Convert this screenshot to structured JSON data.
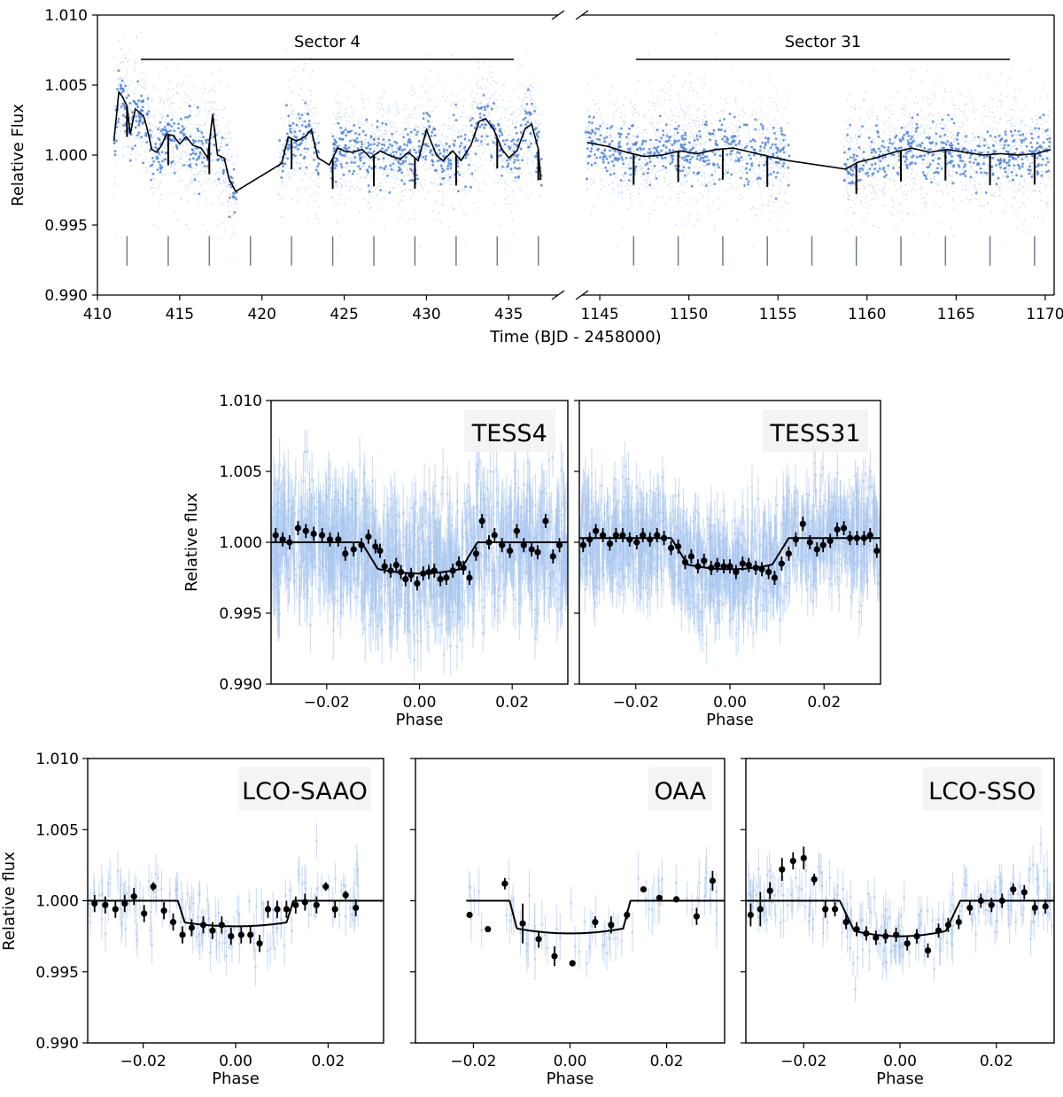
{
  "chart_data": [
    {
      "type": "scatter",
      "panel": "timeseries",
      "ylabel": "Relative Flux",
      "xlabel": "Time (BJD - 2458000)",
      "ylim": [
        0.99,
        1.01
      ],
      "yticks": [
        "0.990",
        "0.995",
        "1.000",
        "1.005",
        "1.010"
      ],
      "segments": [
        {
          "label": "Sector 4",
          "xlim": [
            410,
            438
          ],
          "xticks": [
            "410",
            "415",
            "420",
            "425",
            "430",
            "435"
          ],
          "data_ranges": [
            [
              411.0,
              418.5
            ],
            [
              421.0,
              423.5
            ],
            [
              424.2,
              437.0
            ]
          ],
          "transit_times": [
            411.8,
            414.3,
            416.8,
            419.3,
            421.8,
            424.3,
            426.8,
            429.3,
            431.8,
            434.3,
            436.8
          ],
          "model": {
            "x": [
              411.0,
              411.3,
              411.5,
              411.8,
              412.0,
              412.3,
              412.6,
              412.8,
              413.0,
              413.3,
              413.6,
              413.9,
              414.2,
              414.6,
              415.0,
              415.4,
              415.8,
              416.3,
              416.7,
              417.0,
              417.3,
              417.7,
              418.0,
              418.4,
              421.2,
              421.6,
              422.1,
              422.6,
              423.0,
              423.4,
              424.1,
              424.6,
              425.0,
              425.5,
              426.1,
              426.6,
              427.2,
              427.7,
              428.4,
              428.9,
              429.5,
              430.0,
              430.6,
              431.0,
              431.6,
              432.1,
              432.7,
              433.2,
              433.6,
              434.1,
              434.6,
              435.0,
              435.5,
              436.0,
              436.4,
              436.8,
              437.0
            ],
            "y": [
              1.001,
              1.0045,
              1.0042,
              1.0035,
              1.0015,
              1.0033,
              1.003,
              1.0028,
              1.002,
              1.0004,
              1.0002,
              1.0007,
              1.0015,
              1.0014,
              1.0008,
              1.0013,
              1.0007,
              1.0005,
              0.9998,
              1.0029,
              1.0,
              0.9998,
              0.9983,
              0.9974,
              0.9994,
              1.0013,
              1.001,
              1.0013,
              1.0018,
              0.9998,
              0.9993,
              1.0005,
              1.0003,
              1.0002,
              1.0004,
              0.9998,
              1.0003,
              1.0,
              0.9997,
              1.0002,
              0.9996,
              1.0018,
              1.0,
              0.9996,
              1.0003,
              0.9996,
              1.0007,
              1.0024,
              1.0026,
              1.0018,
              1.0004,
              0.9998,
              1.0003,
              1.0019,
              1.0022,
              1.0004,
              0.9975
            ]
          }
        },
        {
          "label": "Sector 31",
          "xlim": [
            1144,
            1170.5
          ],
          "xticks": [
            "1145",
            "1150",
            "1155",
            "1160",
            "1165",
            "1170"
          ],
          "data_ranges": [
            [
              1144.2,
              1155.7
            ],
            [
              1158.7,
              1170.3
            ]
          ],
          "transit_times": [
            1146.9,
            1149.4,
            1151.9,
            1154.4,
            1156.9,
            1159.4,
            1161.9,
            1164.4,
            1166.9,
            1169.4
          ],
          "model": {
            "x": [
              1144.3,
              1145.5,
              1146.5,
              1147.5,
              1148.5,
              1149.5,
              1150.5,
              1151.5,
              1152.5,
              1153.5,
              1154.5,
              1155.6,
              1158.8,
              1159.5,
              1160.5,
              1161.5,
              1162.5,
              1163.5,
              1164.5,
              1165.5,
              1166.5,
              1167.5,
              1168.5,
              1169.5,
              1170.3
            ],
            "y": [
              1.0009,
              1.0006,
              1.0002,
              0.9999,
              1.0,
              1.0003,
              1.0001,
              1.0004,
              1.0005,
              1.0002,
              0.9999,
              0.9996,
              0.999,
              0.9995,
              0.9998,
              1.0002,
              1.0005,
              1.0002,
              1.0004,
              1.0002,
              1.0,
              1.0001,
              1.0,
              1.0001,
              1.0004
            ]
          }
        }
      ]
    },
    {
      "type": "scatter",
      "panel": "TESS4",
      "label": "TESS4",
      "xlabel": "Phase",
      "ylabel": "Relative flux",
      "xlim": [
        -0.032,
        0.032
      ],
      "ylim": [
        0.99,
        1.01
      ],
      "xticks": [
        "−0.02",
        "0.00",
        "0.02"
      ],
      "yticks": [
        "0.990",
        "0.995",
        "1.000",
        "1.005",
        "1.010"
      ],
      "model": {
        "baseline": 1.0,
        "depth": 0.0022,
        "t1": 0.0125,
        "t2": 0.009
      },
      "binned": {
        "x": [
          -0.031,
          -0.0295,
          -0.028,
          -0.0262,
          -0.0245,
          -0.0228,
          -0.021,
          -0.0193,
          -0.0175,
          -0.016,
          -0.0142,
          -0.0125,
          -0.011,
          -0.0095,
          -0.0085,
          -0.0075,
          -0.0062,
          -0.005,
          -0.004,
          -0.003,
          -0.0018,
          -0.0005,
          0.0008,
          0.002,
          0.0032,
          0.0045,
          0.0058,
          0.0072,
          0.0085,
          0.0095,
          0.0108,
          0.0122,
          0.0135,
          0.015,
          0.0162,
          0.0178,
          0.0195,
          0.021,
          0.0225,
          0.0242,
          0.0255,
          0.0272,
          0.0288,
          0.0302
        ],
        "y": [
          1.0005,
          1.0002,
          1.0,
          1.001,
          1.0008,
          1.0006,
          1.0005,
          1.0002,
          1.0002,
          0.9992,
          0.9995,
          0.9998,
          1.0004,
          0.9997,
          0.9994,
          0.9983,
          0.998,
          0.9984,
          0.9979,
          0.9974,
          0.9977,
          0.9971,
          0.9978,
          0.9979,
          0.998,
          0.9974,
          0.9975,
          0.998,
          0.9985,
          0.9982,
          0.9975,
          0.9992,
          1.0015,
          1.0,
          1.0005,
          0.9998,
          0.9994,
          1.0008,
          0.9998,
          0.9995,
          0.9993,
          1.0015,
          0.999,
          0.9998
        ],
        "err": [
          0.0005,
          0.0005,
          0.0005,
          0.0005,
          0.0005,
          0.0005,
          0.0005,
          0.0005,
          0.0005,
          0.0005,
          0.0005,
          0.0005,
          0.0005,
          0.0005,
          0.0005,
          0.0005,
          0.0005,
          0.0005,
          0.0005,
          0.0005,
          0.0005,
          0.0005,
          0.0005,
          0.0005,
          0.0005,
          0.0005,
          0.0005,
          0.0005,
          0.0005,
          0.0005,
          0.0005,
          0.0005,
          0.0005,
          0.0005,
          0.0005,
          0.0005,
          0.0005,
          0.0005,
          0.0005,
          0.0005,
          0.0005,
          0.0005,
          0.0005,
          0.0005
        ]
      }
    },
    {
      "type": "scatter",
      "panel": "TESS31",
      "label": "TESS31",
      "xlabel": "Phase",
      "ylabel": "",
      "xlim": [
        -0.032,
        0.032
      ],
      "ylim": [
        0.99,
        1.01
      ],
      "xticks": [
        "−0.02",
        "0.00",
        "0.02"
      ],
      "yticks": [],
      "model": {
        "baseline": 1.0003,
        "depth": 0.0022,
        "t1": 0.0125,
        "t2": 0.009
      },
      "binned": {
        "x": [
          -0.0312,
          -0.0298,
          -0.0285,
          -0.027,
          -0.0255,
          -0.0242,
          -0.0228,
          -0.0213,
          -0.0198,
          -0.0185,
          -0.017,
          -0.0155,
          -0.014,
          -0.0125,
          -0.011,
          -0.0095,
          -0.0082,
          -0.0068,
          -0.0055,
          -0.004,
          -0.0027,
          -0.0013,
          0.0,
          0.0013,
          0.0027,
          0.004,
          0.0055,
          0.0068,
          0.0082,
          0.0095,
          0.011,
          0.0125,
          0.014,
          0.0155,
          0.017,
          0.0185,
          0.0198,
          0.0213,
          0.0228,
          0.0242,
          0.0255,
          0.027,
          0.0285,
          0.0298,
          0.0312
        ],
        "y": [
          0.9998,
          1.0002,
          1.0008,
          1.0005,
          0.9999,
          1.0005,
          1.0005,
          1.0002,
          1.0,
          1.0005,
          1.0002,
          1.0005,
          1.0003,
          0.9996,
          0.9997,
          0.9986,
          0.999,
          0.9983,
          0.9987,
          0.9982,
          0.9984,
          0.9983,
          0.9983,
          0.9979,
          0.9985,
          0.9984,
          0.9982,
          0.9981,
          0.9979,
          0.9975,
          0.9985,
          0.9992,
          1.0002,
          1.0013,
          1.0,
          0.9995,
          0.9998,
          1.0001,
          1.0009,
          1.001,
          1.0003,
          1.0003,
          1.0003,
          1.0005,
          0.9994
        ],
        "err": [
          0.0005,
          0.0005,
          0.0005,
          0.0005,
          0.0005,
          0.0005,
          0.0005,
          0.0005,
          0.0005,
          0.0005,
          0.0005,
          0.0005,
          0.0005,
          0.0005,
          0.0005,
          0.0005,
          0.0005,
          0.0005,
          0.0005,
          0.0005,
          0.0005,
          0.0005,
          0.0005,
          0.0005,
          0.0005,
          0.0005,
          0.0005,
          0.0005,
          0.0005,
          0.0005,
          0.0005,
          0.0005,
          0.0005,
          0.0005,
          0.0005,
          0.0005,
          0.0005,
          0.0005,
          0.0005,
          0.0005,
          0.0005,
          0.0005,
          0.0005,
          0.0005,
          0.0005
        ]
      }
    },
    {
      "type": "scatter",
      "panel": "LCO-SAAO",
      "label": "LCO-SAAO",
      "xlabel": "Phase",
      "ylabel": "Relative flux",
      "xlim": [
        -0.032,
        0.032
      ],
      "ylim": [
        0.99,
        1.01
      ],
      "xticks": [
        "−0.02",
        "0.00",
        "0.02"
      ],
      "yticks": [
        "0.990",
        "0.995",
        "1.000",
        "1.005",
        "1.010"
      ],
      "data_xrange": [
        -0.032,
        0.027
      ],
      "model": {
        "baseline": 1.0,
        "depth": 0.0018,
        "t1": 0.0125,
        "t2": 0.011
      },
      "binned": {
        "x": [
          -0.0305,
          -0.0282,
          -0.026,
          -0.024,
          -0.022,
          -0.0198,
          -0.0178,
          -0.0155,
          -0.0135,
          -0.0115,
          -0.0095,
          -0.007,
          -0.005,
          -0.003,
          -0.001,
          0.0012,
          0.0032,
          0.0052,
          0.007,
          0.009,
          0.011,
          0.013,
          0.015,
          0.0175,
          0.0195,
          0.0215,
          0.0238,
          0.026
        ],
        "y": [
          0.9998,
          0.9997,
          0.9994,
          0.9998,
          1.0003,
          0.9991,
          1.001,
          0.9993,
          0.9985,
          0.9976,
          0.9981,
          0.9983,
          0.9979,
          0.9983,
          0.9975,
          0.9976,
          0.9976,
          0.997,
          0.9994,
          0.9994,
          0.9994,
          0.9997,
          0.9999,
          0.9997,
          1.001,
          0.9994,
          1.0004,
          0.9995
        ],
        "err": [
          0.0006,
          0.0006,
          0.0006,
          0.0006,
          0.0006,
          0.0006,
          0.0003,
          0.0006,
          0.0006,
          0.0006,
          0.0006,
          0.0006,
          0.0006,
          0.0006,
          0.0006,
          0.0006,
          0.0006,
          0.0006,
          0.0006,
          0.0006,
          0.0006,
          0.0006,
          0.0006,
          0.0006,
          0.0003,
          0.0006,
          0.0003,
          0.0006
        ]
      }
    },
    {
      "type": "scatter",
      "panel": "OAA",
      "label": "OAA",
      "xlabel": "Phase",
      "ylabel": "",
      "xlim": [
        -0.032,
        0.032
      ],
      "ylim": [
        0.99,
        1.01
      ],
      "xticks": [
        "−0.02",
        "0.00",
        "0.02"
      ],
      "yticks": [],
      "data_xrange": [
        -0.0215,
        0.032
      ],
      "model": {
        "baseline": 1.0,
        "depth": 0.0023,
        "t1": 0.0125,
        "t2": 0.011
      },
      "binned": {
        "x": [
          -0.0208,
          -0.017,
          -0.0135,
          -0.0098,
          -0.0065,
          -0.0032,
          0.0005,
          0.0052,
          0.0085,
          0.0118,
          0.0152,
          0.0185,
          0.022,
          0.0262,
          0.0295
        ],
        "y": [
          0.999,
          0.998,
          1.0012,
          0.9984,
          0.9973,
          0.9961,
          0.9956,
          0.9985,
          0.9983,
          0.999,
          1.0008,
          1.0002,
          1.0001,
          0.9989,
          1.0014
        ],
        "err": [
          0.0002,
          0.0002,
          0.0004,
          0.0014,
          0.0006,
          0.0007,
          0.0002,
          0.0004,
          0.0006,
          0.0003,
          0.0002,
          0.0002,
          0.0002,
          0.0006,
          0.0007
        ]
      }
    },
    {
      "type": "scatter",
      "panel": "LCO-SSO",
      "label": "LCO-SSO",
      "xlabel": "Phase",
      "ylabel": "",
      "xlim": [
        -0.032,
        0.032
      ],
      "ylim": [
        0.99,
        1.01
      ],
      "xticks": [
        "−0.02",
        "0.00",
        "0.02"
      ],
      "yticks": [],
      "data_xrange": [
        -0.032,
        0.032
      ],
      "model": {
        "baseline": 1.0,
        "depth": 0.0025,
        "t1": 0.0125,
        "t2": 0.0095
      },
      "binned": {
        "x": [
          -0.031,
          -0.029,
          -0.027,
          -0.0245,
          -0.0222,
          -0.02,
          -0.0178,
          -0.0155,
          -0.0135,
          -0.0112,
          -0.009,
          -0.007,
          -0.005,
          -0.003,
          -0.0008,
          0.0015,
          0.0035,
          0.0058,
          0.008,
          0.01,
          0.0122,
          0.0145,
          0.0168,
          0.019,
          0.0212,
          0.0235,
          0.0258,
          0.028,
          0.0302
        ],
        "y": [
          0.999,
          0.9994,
          1.0007,
          1.0022,
          1.0028,
          1.003,
          1.0015,
          0.9994,
          0.9994,
          0.9985,
          0.998,
          0.9977,
          0.9974,
          0.9975,
          0.9976,
          0.997,
          0.9975,
          0.9965,
          0.9979,
          0.9983,
          0.9985,
          0.9995,
          1.0,
          0.9997,
          1.0,
          1.0008,
          1.0006,
          0.9995,
          0.9996
        ],
        "err": [
          0.0008,
          0.0012,
          0.0006,
          0.0008,
          0.0006,
          0.0008,
          0.0004,
          0.0006,
          0.0005,
          0.0005,
          0.0005,
          0.0005,
          0.0005,
          0.0005,
          0.0005,
          0.0005,
          0.0005,
          0.0005,
          0.0005,
          0.0005,
          0.0005,
          0.0005,
          0.0005,
          0.0005,
          0.0005,
          0.0004,
          0.0005,
          0.0005,
          0.0005
        ]
      }
    }
  ],
  "colors": {
    "raw": "#a9c6ef",
    "binned_tess": "#4f86df",
    "model": "#000000",
    "transit_marker": "#6f7d8c",
    "label_box": "#f2f2f2"
  }
}
